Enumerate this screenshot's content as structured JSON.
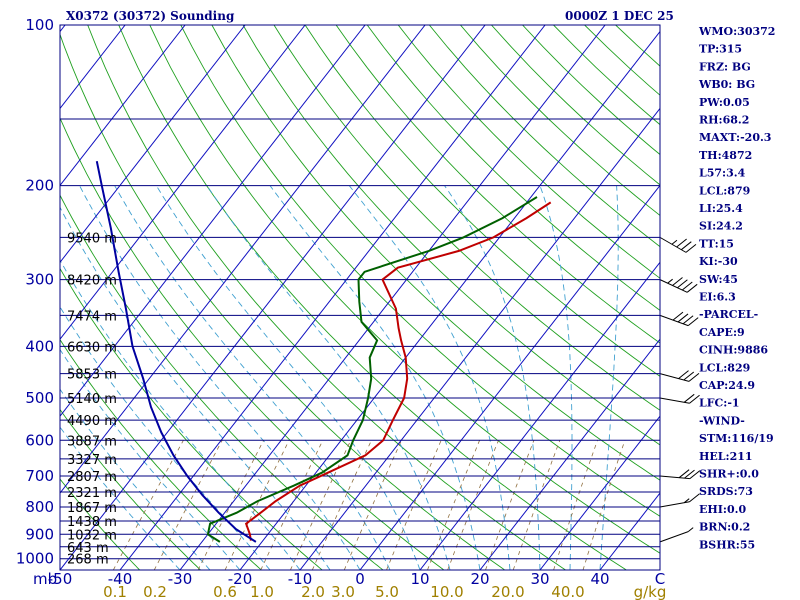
{
  "header": {
    "station": "X0372 (30372) Sounding",
    "time": "0000Z  1 DEC 25"
  },
  "indices": [
    "WMO:30372",
    "TP:315",
    "FRZ: BG",
    "WB0: BG",
    "PW:0.05",
    "RH:68.2",
    "MAXT:-20.3",
    "TH:4872",
    "L57:3.4",
    "LCL:879",
    "LI:25.4",
    "SI:24.2",
    "TT:15",
    "KI:-30",
    "SW:45",
    "EI:6.3",
    "-PARCEL-",
    "CAPE:9",
    "CINH:9886",
    "LCL:829",
    "CAP:24.9",
    "LFC:-1",
    "-WIND-",
    "STM:116/19",
    "HEL:211",
    "SHR+:0.0",
    "SRDS:73",
    "EHI:0.0",
    "BRN:0.2",
    "BSHR:55"
  ],
  "chart_data": {
    "type": "line",
    "title": "X0372 (30372) Sounding",
    "pressure_levels": [
      100,
      200,
      300,
      400,
      500,
      600,
      700,
      800,
      900,
      1000
    ],
    "mb_label": "mb",
    "x_ticks": [
      -50,
      -40,
      -30,
      -20,
      -10,
      0,
      10,
      20,
      30,
      40,
      "C"
    ],
    "mixing_ratio_ticks": [
      "0.1",
      "0.2",
      "0.6",
      "1.0",
      "2.0",
      "3.0",
      "5.0",
      "10.0",
      "20.0",
      "40.0",
      "g/kg"
    ],
    "height_labels": [
      {
        "p": 250,
        "label": "9540 m"
      },
      {
        "p": 300,
        "label": "8420 m"
      },
      {
        "p": 350,
        "label": "7474 m"
      },
      {
        "p": 400,
        "label": "6630 m"
      },
      {
        "p": 450,
        "label": "5853 m"
      },
      {
        "p": 500,
        "label": "5140 m"
      },
      {
        "p": 550,
        "label": "4490 m"
      },
      {
        "p": 600,
        "label": "3887 m"
      },
      {
        "p": 650,
        "label": "3327 m"
      },
      {
        "p": 700,
        "label": "2807 m"
      },
      {
        "p": 750,
        "label": "2321 m"
      },
      {
        "p": 800,
        "label": "1867 m"
      },
      {
        "p": 850,
        "label": "1438 m"
      },
      {
        "p": 900,
        "label": "1032 m"
      },
      {
        "p": 950,
        "label": "643 m"
      },
      {
        "p": 1000,
        "label": "268 m"
      }
    ],
    "series": [
      {
        "color": "#c00000",
        "points": [
          {
            "p": 925,
            "t": -22
          },
          {
            "p": 900,
            "t": -23
          },
          {
            "p": 860,
            "t": -25
          },
          {
            "p": 820,
            "t": -24
          },
          {
            "p": 780,
            "t": -23
          },
          {
            "p": 730,
            "t": -21
          },
          {
            "p": 690,
            "t": -18
          },
          {
            "p": 640,
            "t": -14
          },
          {
            "p": 600,
            "t": -13
          },
          {
            "p": 550,
            "t": -14
          },
          {
            "p": 500,
            "t": -15
          },
          {
            "p": 460,
            "t": -17
          },
          {
            "p": 420,
            "t": -20
          },
          {
            "p": 390,
            "t": -23
          },
          {
            "p": 370,
            "t": -25
          },
          {
            "p": 340,
            "t": -28
          },
          {
            "p": 300,
            "t": -34
          },
          {
            "p": 285,
            "t": -33
          },
          {
            "p": 265,
            "t": -25
          },
          {
            "p": 250,
            "t": -21
          },
          {
            "p": 230,
            "t": -18
          },
          {
            "p": 215,
            "t": -16
          }
        ]
      },
      {
        "color": "#006000",
        "points": [
          {
            "p": 930,
            "t": -27
          },
          {
            "p": 900,
            "t": -30
          },
          {
            "p": 860,
            "t": -31
          },
          {
            "p": 820,
            "t": -28
          },
          {
            "p": 780,
            "t": -26
          },
          {
            "p": 730,
            "t": -22
          },
          {
            "p": 690,
            "t": -19
          },
          {
            "p": 640,
            "t": -17
          },
          {
            "p": 600,
            "t": -18
          },
          {
            "p": 550,
            "t": -19
          },
          {
            "p": 500,
            "t": -21
          },
          {
            "p": 460,
            "t": -23
          },
          {
            "p": 420,
            "t": -26
          },
          {
            "p": 390,
            "t": -27
          },
          {
            "p": 360,
            "t": -32
          },
          {
            "p": 330,
            "t": -35
          },
          {
            "p": 300,
            "t": -38
          },
          {
            "p": 290,
            "t": -38
          },
          {
            "p": 265,
            "t": -30
          },
          {
            "p": 250,
            "t": -26
          },
          {
            "p": 230,
            "t": -22
          },
          {
            "p": 210,
            "t": -19
          }
        ]
      },
      {
        "color": "#0000a0",
        "points": [
          {
            "p": 930,
            "t": -21
          },
          {
            "p": 880,
            "t": -26
          },
          {
            "p": 820,
            "t": -31
          },
          {
            "p": 760,
            "t": -36
          },
          {
            "p": 700,
            "t": -41
          },
          {
            "p": 640,
            "t": -46
          },
          {
            "p": 580,
            "t": -51
          },
          {
            "p": 520,
            "t": -56
          },
          {
            "p": 460,
            "t": -61
          },
          {
            "p": 400,
            "t": -67
          },
          {
            "p": 340,
            "t": -73
          },
          {
            "p": 290,
            "t": -79
          },
          {
            "p": 240,
            "t": -86
          },
          {
            "p": 200,
            "t": -93
          },
          {
            "p": 180,
            "t": -97
          }
        ]
      }
    ],
    "winds": [
      {
        "p": 250,
        "dir": 300,
        "spd": 35
      },
      {
        "p": 300,
        "dir": 295,
        "spd": 45
      },
      {
        "p": 350,
        "dir": 290,
        "spd": 40
      },
      {
        "p": 450,
        "dir": 285,
        "spd": 30
      },
      {
        "p": 500,
        "dir": 280,
        "spd": 20
      },
      {
        "p": 700,
        "dir": 275,
        "spd": 30
      },
      {
        "p": 800,
        "dir": 260,
        "spd": 15
      },
      {
        "p": 930,
        "dir": 250,
        "spd": 5
      }
    ],
    "ylim": [
      100,
      1000
    ],
    "xlim": [
      -50,
      50
    ]
  }
}
